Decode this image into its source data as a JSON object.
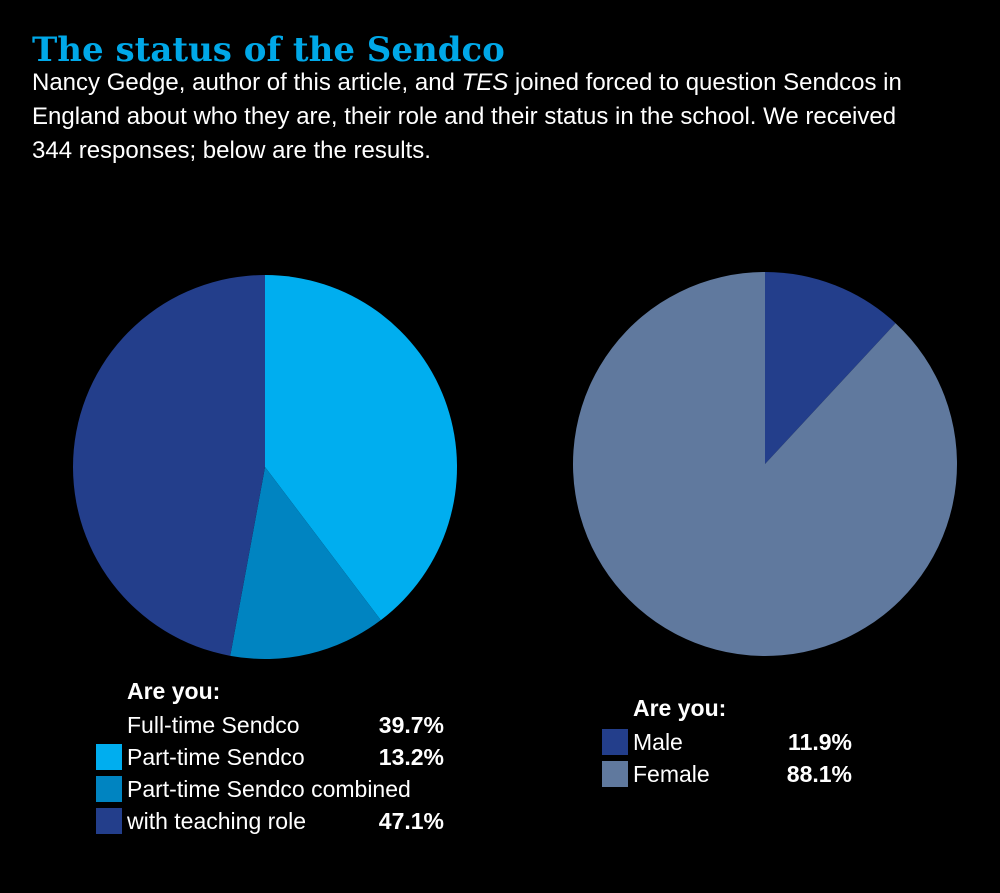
{
  "header": {
    "title": "The status of the Sendco",
    "intro_before": "Nancy Gedge, author of this article, and ",
    "intro_em": "TES",
    "intro_after": " joined forced to question Sendcos in England about who they are, their role and their status in the school. We received 344 responses; below are the results."
  },
  "colors": {
    "background": "#000000",
    "title": "#00a8e8",
    "light_blue": "#00aeef",
    "mid_blue": "#0084c1",
    "dark_blue": "#233e8b",
    "slate_blue": "#60799e"
  },
  "chart_data": [
    {
      "type": "pie",
      "legend_title": "Are you:",
      "slices": [
        {
          "label": "Full-time Sendco",
          "value": 39.7,
          "value_label": "39.7%",
          "color": "#00aeef"
        },
        {
          "label": "Part-time Sendco",
          "value": 13.2,
          "value_label": "13.2%",
          "color": "#0084c1"
        },
        {
          "label": "Part-time Sendco combined with teaching role",
          "value": 47.1,
          "value_label": "47.1%",
          "color": "#233e8b"
        }
      ],
      "legend_rows": [
        {
          "label": "Full-time Sendco",
          "value_label": "39.7%",
          "swatch": null
        },
        {
          "label": "Part-time Sendco",
          "value_label": "13.2%",
          "swatch": "#00aeef"
        },
        {
          "label": "Part-time Sendco combined",
          "value_label": "",
          "swatch": "#0084c1"
        },
        {
          "label": "with teaching role",
          "value_label": "47.1%",
          "swatch": "#233e8b"
        }
      ]
    },
    {
      "type": "pie",
      "legend_title": "Are you:",
      "slices": [
        {
          "label": "Male",
          "value": 11.9,
          "value_label": "11.9%",
          "color": "#233e8b"
        },
        {
          "label": "Female",
          "value": 88.1,
          "value_label": "88.1%",
          "color": "#60799e"
        }
      ],
      "legend_rows": [
        {
          "label": "Male",
          "value_label": "11.9%",
          "swatch": "#233e8b"
        },
        {
          "label": "Female",
          "value_label": "88.1%",
          "swatch": "#60799e"
        }
      ]
    }
  ]
}
